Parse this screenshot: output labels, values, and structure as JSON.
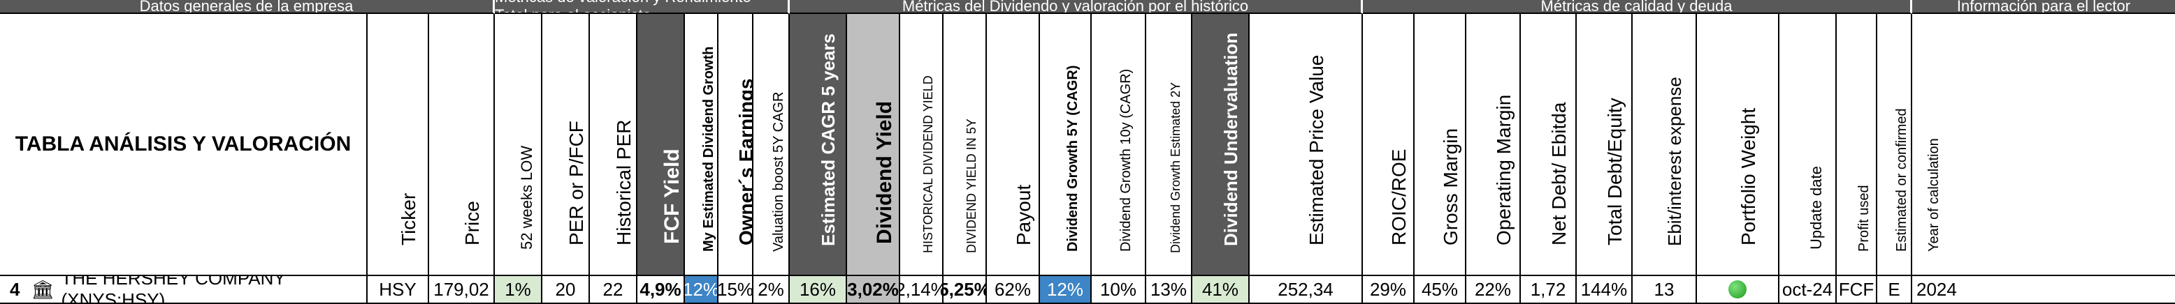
{
  "groups": [
    "Datos generales de la empresa",
    "Métricas de valoración y Rendimiento Total para el accionista",
    "Métricas del Dividendo y valoración por el histórico",
    "Métricas de calidad y deuda",
    "Información para el lector"
  ],
  "table_title": "TABLA ANÁLISIS Y VALORACIÓN",
  "columns": [
    "Ticker",
    "Price",
    "52 weeks LOW",
    "PER or P/FCF",
    "Historical PER",
    "FCF Yield",
    "My Estimated Dividend Growth",
    "Owner´s Earnings",
    "Valuation boost 5Y CAGR",
    "Estimated CAGR 5 years",
    "Dividend Yield",
    "HISTORICAL DIVIDEND YIELD",
    "DIVIDEND YIELD IN 5Y",
    "Payout",
    "Dividend Growth 5Y (CAGR)",
    "Dividend Growth 10y (CAGR)",
    "Dividend Growth Estimated 2Y",
    "Dividend Undervaluation",
    "Estimated Price Value",
    "ROIC/ROE",
    "Gross Margin",
    "Operating Margin",
    "Net Debt/ Ebitda",
    "Total Debt/Equity",
    "Ebit/interest expense",
    "Portfolio Weight",
    "Update date",
    "Profit used",
    "Estimated or confirmed",
    "Year of calculation"
  ],
  "row": {
    "index": "4",
    "icon": "bank-icon",
    "company": "THE HERSHEY COMPANY (XNYS:HSY)",
    "values": [
      "HSY",
      "179,02",
      "1%",
      "20",
      "22",
      "4,9%",
      "12%",
      "15%",
      "2%",
      "16%",
      "3,02%",
      "2,14%",
      "5,25%",
      "62%",
      "12%",
      "10%",
      "13%",
      "41%",
      "252,34",
      "29%",
      "45%",
      "22%",
      "1,72",
      "144%",
      "13",
      "",
      "oct-24",
      "FCF",
      "E",
      "2024"
    ]
  },
  "colors": {
    "header_dark": "#595959",
    "highlight_green": "#d9ead3",
    "highlight_blue": "#3d85c6",
    "highlight_grey": "#bfbfbf"
  }
}
